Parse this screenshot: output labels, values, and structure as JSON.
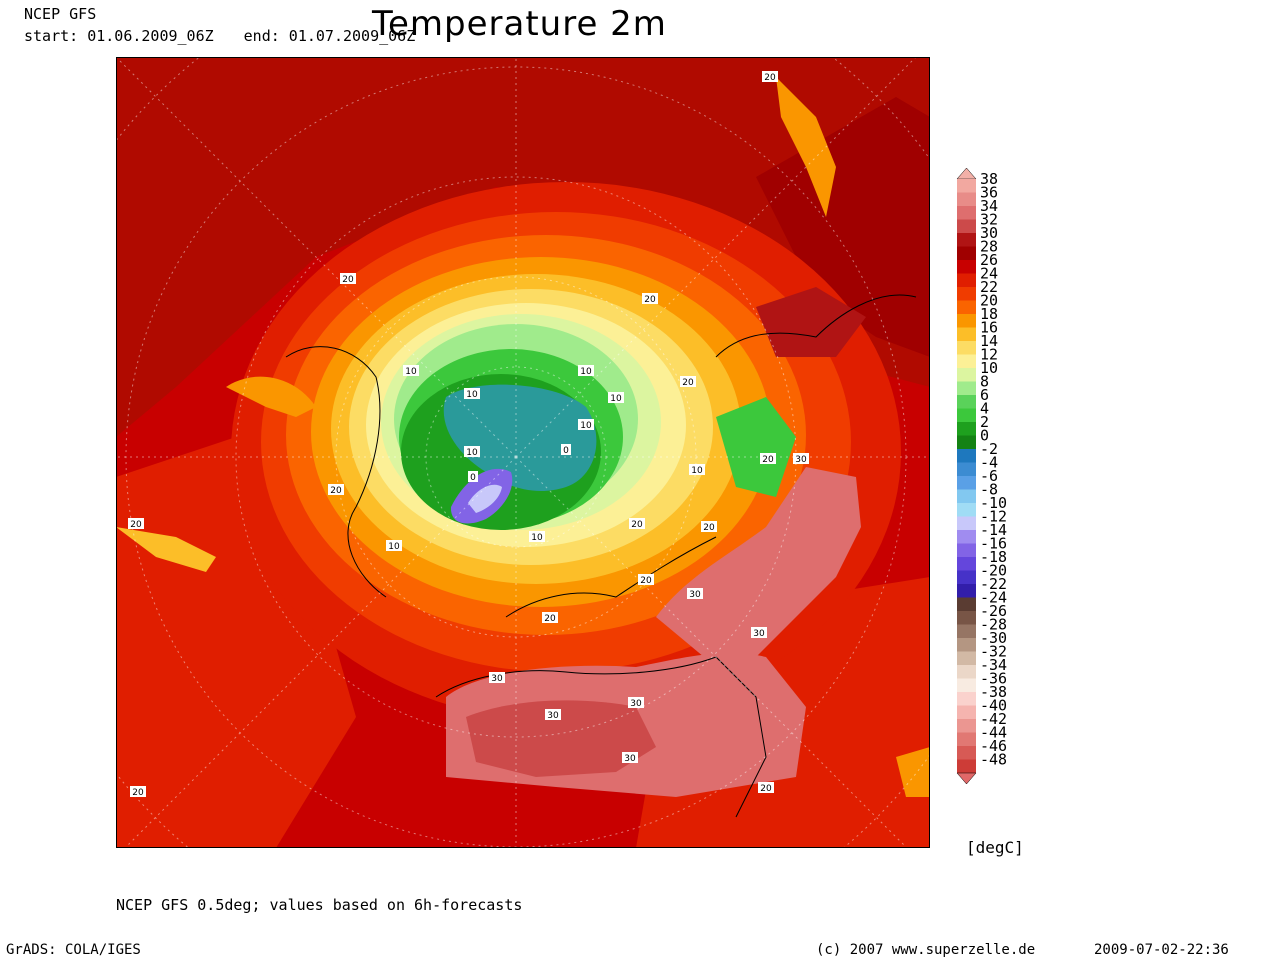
{
  "header": {
    "model": "NCEP GFS",
    "start": "start: 01.06.2009_06Z",
    "end": "end: 01.07.2009_06Z",
    "title": "Temperature 2m"
  },
  "colorbar": {
    "unit": "[degC]",
    "top_arrow_color": "#f2b0a8",
    "bottom_arrow_color": "#e06868",
    "entries": [
      {
        "label": "38",
        "color": "#f2a8a0"
      },
      {
        "label": "36",
        "color": "#e88c88"
      },
      {
        "label": "34",
        "color": "#de6e6e"
      },
      {
        "label": "32",
        "color": "#cc4a4a"
      },
      {
        "label": "30",
        "color": "#b01414"
      },
      {
        "label": "28",
        "color": "#a00000"
      },
      {
        "label": "26",
        "color": "#c80000"
      },
      {
        "label": "24",
        "color": "#e01e00"
      },
      {
        "label": "22",
        "color": "#f03c00"
      },
      {
        "label": "20",
        "color": "#fa6400"
      },
      {
        "label": "18",
        "color": "#fa9600"
      },
      {
        "label": "16",
        "color": "#fcbe28"
      },
      {
        "label": "14",
        "color": "#fcdc64"
      },
      {
        "label": "12",
        "color": "#fcf096"
      },
      {
        "label": "10",
        "color": "#dcf5a0"
      },
      {
        "label": "8",
        "color": "#a0eb8c"
      },
      {
        "label": "6",
        "color": "#5ad25a"
      },
      {
        "label": "4",
        "color": "#3cc83c"
      },
      {
        "label": "2",
        "color": "#1ea01e"
      },
      {
        "label": "0",
        "color": "#148214"
      },
      {
        "label": "-2",
        "color": "#1e78be"
      },
      {
        "label": "-4",
        "color": "#3c8cd2"
      },
      {
        "label": "-6",
        "color": "#5aa0e6"
      },
      {
        "label": "-8",
        "color": "#82c8f0"
      },
      {
        "label": "-10",
        "color": "#a0dcf5"
      },
      {
        "label": "-12",
        "color": "#c8c8fa"
      },
      {
        "label": "-14",
        "color": "#a08cf0"
      },
      {
        "label": "-16",
        "color": "#8264e6"
      },
      {
        "label": "-18",
        "color": "#6446dc"
      },
      {
        "label": "-20",
        "color": "#4632c8"
      },
      {
        "label": "-22",
        "color": "#321eaa"
      },
      {
        "label": "-24",
        "color": "#5a3c32"
      },
      {
        "label": "-26",
        "color": "#785546"
      },
      {
        "label": "-28",
        "color": "#967564"
      },
      {
        "label": "-30",
        "color": "#b49682"
      },
      {
        "label": "-32",
        "color": "#d2b9a5"
      },
      {
        "label": "-34",
        "color": "#ebd7c8"
      },
      {
        "label": "-36",
        "color": "#f8ebe1"
      },
      {
        "label": "-38",
        "color": "#fad2cd"
      },
      {
        "label": "-40",
        "color": "#f5b4af"
      },
      {
        "label": "-42",
        "color": "#eb9691"
      },
      {
        "label": "-44",
        "color": "#e17873"
      },
      {
        "label": "-46",
        "color": "#d75a55"
      },
      {
        "label": "-48",
        "color": "#cd3c37"
      }
    ]
  },
  "map": {
    "contour_labels": [
      "20",
      "20",
      "20",
      "20",
      "20",
      "20",
      "20",
      "20",
      "20",
      "20",
      "20",
      "20",
      "20",
      "10",
      "10",
      "10",
      "10",
      "10",
      "10",
      "10",
      "10",
      "10",
      "0",
      "0",
      "30",
      "30",
      "30",
      "30",
      "30",
      "30",
      "30"
    ]
  },
  "footer": {
    "source": "NCEP GFS 0.5deg; values based on 6h-forecasts",
    "software": "GrADS: COLA/IGES",
    "copyright": "(c) 2007 www.superzelle.de",
    "timestamp": "2009-07-02-22:36"
  }
}
